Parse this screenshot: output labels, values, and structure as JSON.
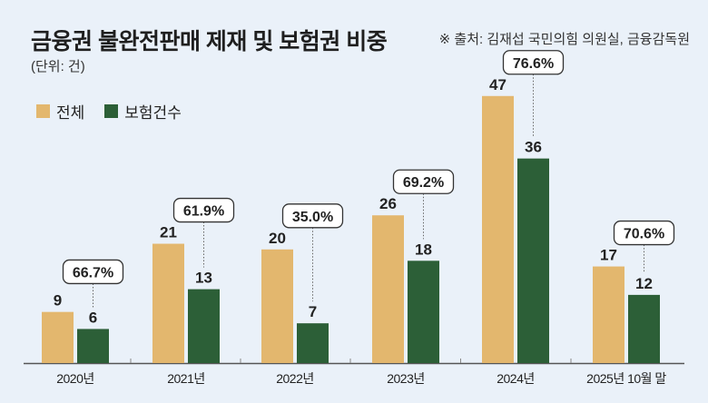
{
  "header": {
    "title": "금융권 불완전판매 제재 및 보험권 비중",
    "unit": "(단위: 건)",
    "source": "※ 출처: 김재섭 국민의힘 의원실, 금융감독원"
  },
  "colors": {
    "total": "#e3b76e",
    "insurance": "#2c5f37",
    "background": "#eaf1f9"
  },
  "chart_data": {
    "type": "bar",
    "title": "금융권 불완전판매 제재 및 보험권 비중",
    "unit": "(단위: 건)",
    "categories": [
      "2020년",
      "2021년",
      "2022년",
      "2023년",
      "2024년",
      "2025년 10월 말"
    ],
    "series": [
      {
        "name": "전체",
        "values": [
          9,
          21,
          20,
          26,
          47,
          17
        ]
      },
      {
        "name": "보험건수",
        "values": [
          6,
          13,
          7,
          18,
          36,
          12
        ]
      }
    ],
    "value_labels": {
      "전체": [
        "9",
        "21",
        "20",
        "26",
        "47",
        "17"
      ],
      "보험건수": [
        "6",
        "13",
        "7",
        "18",
        "36",
        "12"
      ]
    },
    "share_labels": [
      "66.7%",
      "61.9%",
      "35.0%",
      "69.2%",
      "76.6%",
      "70.6%"
    ],
    "ylim": [
      0,
      47
    ],
    "legend": "top-left",
    "grid": false
  }
}
